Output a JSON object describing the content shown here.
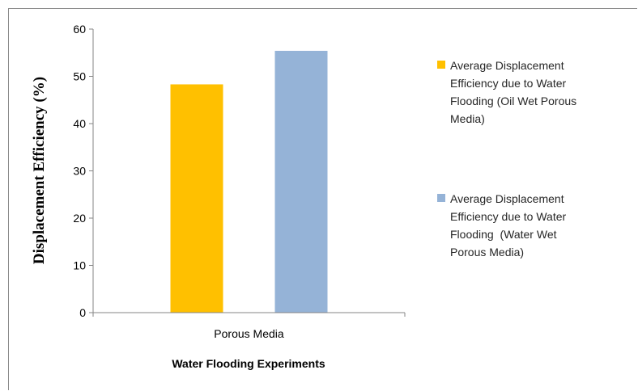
{
  "chart_data": {
    "type": "bar",
    "categories": [
      "Porous Media"
    ],
    "series": [
      {
        "name": "Average Displacement Efficiency due to Water Flooding (Oil Wet Porous Media)",
        "values": [
          48.3
        ],
        "color": "#FFC000"
      },
      {
        "name": "Average Displacement Efficiency due to Water Flooding  (Water Wet Porous Media)",
        "values": [
          55.4
        ],
        "color": "#95B3D7"
      }
    ],
    "legend_lines": [
      [
        "Average Displacement",
        "Efficiency due to Water",
        "Flooding (Oil Wet Porous",
        "Media)"
      ],
      [
        "Average Displacement",
        "Efficiency due to Water",
        "Flooding  (Water Wet",
        "Porous Media)"
      ]
    ],
    "title": "",
    "xlabel": "Water Flooding Experiments",
    "ylabel": "Displacement Efficiency (%)",
    "ylim": [
      0,
      60
    ],
    "yticks": [
      0,
      10,
      20,
      30,
      40,
      50,
      60
    ],
    "grid": false,
    "legend_position": "right"
  }
}
